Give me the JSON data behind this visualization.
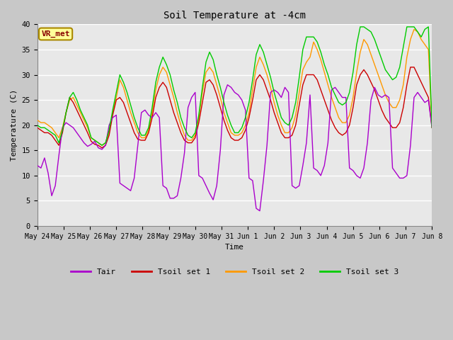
{
  "title": "Soil Temperature at -4cm",
  "xlabel": "Time",
  "ylabel": "Temperature (C)",
  "ylim": [
    0,
    40
  ],
  "figsize": [
    6.4,
    4.8
  ],
  "dpi": 100,
  "annotation_text": "VR_met",
  "annotation_bg": "#ffff99",
  "annotation_border": "#aa8800",
  "annotation_text_color": "#880000",
  "colors": {
    "Tair": "#aa00cc",
    "Tsoil1": "#cc0000",
    "Tsoil2": "#ff9900",
    "Tsoil3": "#00cc00"
  },
  "legend_labels": [
    "Tair",
    "Tsoil set 1",
    "Tsoil set 2",
    "Tsoil set 3"
  ],
  "xtick_labels": [
    "May 24",
    "May 25",
    "May 26",
    "May 27",
    "May 28",
    "May 29",
    "May 30",
    "May 31",
    "Jun 1",
    "Jun 2",
    "Jun 3",
    "Jun 4",
    "Jun 5",
    "Jun 6",
    "Jun 7",
    "Jun 8"
  ],
  "tair": [
    12.0,
    11.5,
    13.5,
    10.5,
    6.0,
    8.0,
    14.0,
    19.5,
    20.5,
    20.0,
    19.5,
    18.5,
    17.5,
    16.5,
    15.8,
    16.2,
    16.8,
    15.5,
    15.2,
    16.0,
    20.0,
    21.5,
    22.0,
    8.5,
    8.0,
    7.5,
    7.0,
    9.5,
    16.0,
    22.5,
    23.0,
    22.0,
    21.5,
    22.5,
    21.5,
    8.0,
    7.5,
    5.5,
    5.5,
    6.0,
    9.5,
    14.5,
    23.5,
    25.5,
    26.5,
    10.0,
    9.5,
    8.0,
    6.5,
    5.2,
    8.0,
    15.0,
    26.0,
    28.0,
    27.5,
    26.5,
    26.0,
    25.0,
    23.0,
    9.5,
    9.0,
    3.5,
    3.0,
    9.0,
    16.0,
    26.5,
    27.0,
    26.5,
    25.5,
    27.5,
    26.5,
    8.0,
    7.5,
    8.0,
    12.0,
    16.5,
    26.0,
    11.5,
    11.0,
    10.0,
    12.0,
    16.5,
    27.0,
    27.5,
    26.5,
    25.5,
    25.5,
    11.5,
    11.0,
    10.0,
    9.5,
    11.5,
    16.5,
    25.0,
    27.5,
    26.0,
    25.5,
    26.0,
    25.5,
    11.5,
    10.5,
    9.5,
    9.5,
    10.0,
    16.0,
    25.5,
    26.5,
    25.5,
    24.5,
    25.0,
    19.5
  ],
  "tsoil1": [
    19.5,
    19.0,
    18.5,
    18.5,
    18.0,
    17.0,
    16.0,
    18.5,
    22.5,
    25.5,
    24.5,
    23.0,
    21.5,
    20.0,
    18.5,
    16.8,
    16.2,
    16.0,
    15.5,
    16.0,
    18.0,
    22.0,
    25.0,
    25.5,
    24.5,
    22.5,
    20.5,
    18.5,
    17.2,
    17.0,
    17.0,
    18.5,
    21.5,
    25.5,
    27.5,
    28.5,
    27.5,
    25.0,
    22.5,
    20.5,
    18.5,
    17.0,
    16.5,
    16.5,
    17.5,
    20.5,
    24.5,
    28.5,
    29.0,
    28.0,
    26.0,
    23.5,
    21.0,
    19.0,
    17.5,
    17.0,
    17.0,
    17.5,
    19.0,
    21.5,
    25.0,
    29.0,
    30.0,
    29.0,
    27.0,
    25.0,
    22.5,
    20.5,
    18.5,
    17.5,
    17.5,
    18.0,
    20.0,
    24.0,
    28.0,
    30.0,
    30.0,
    30.0,
    29.0,
    27.0,
    25.0,
    23.0,
    21.0,
    19.5,
    18.5,
    18.0,
    18.5,
    20.0,
    23.5,
    28.0,
    30.0,
    31.0,
    30.0,
    28.5,
    27.0,
    25.0,
    23.0,
    21.5,
    20.5,
    19.5,
    19.5,
    20.5,
    23.5,
    28.0,
    31.5,
    31.5,
    30.0,
    28.5,
    27.0,
    25.5,
    19.5
  ],
  "tsoil2": [
    21.0,
    20.5,
    20.5,
    20.0,
    19.5,
    18.5,
    17.5,
    19.5,
    22.5,
    25.0,
    25.5,
    24.0,
    22.5,
    21.0,
    19.5,
    17.5,
    17.0,
    16.5,
    16.0,
    16.5,
    18.5,
    22.5,
    25.5,
    29.0,
    27.5,
    25.0,
    22.5,
    20.5,
    18.5,
    17.5,
    17.5,
    19.0,
    22.5,
    27.0,
    30.0,
    31.5,
    30.5,
    28.0,
    25.5,
    22.5,
    20.0,
    18.0,
    17.0,
    17.0,
    18.0,
    21.5,
    26.5,
    30.5,
    31.5,
    30.5,
    28.0,
    25.5,
    22.5,
    20.5,
    18.5,
    18.0,
    18.0,
    18.5,
    20.0,
    22.5,
    27.0,
    31.5,
    33.5,
    32.0,
    30.0,
    27.5,
    24.5,
    22.0,
    20.0,
    18.5,
    18.5,
    19.5,
    22.0,
    26.5,
    31.0,
    32.5,
    33.5,
    36.5,
    35.0,
    33.0,
    30.5,
    28.0,
    25.5,
    23.5,
    21.5,
    20.5,
    20.5,
    22.0,
    25.5,
    30.5,
    34.5,
    37.0,
    36.0,
    34.0,
    32.0,
    30.0,
    28.0,
    26.0,
    24.5,
    23.5,
    23.5,
    25.0,
    28.0,
    33.5,
    37.0,
    39.0,
    38.5,
    37.0,
    36.0,
    35.0,
    19.5
  ],
  "tsoil3": [
    20.0,
    19.5,
    19.5,
    19.0,
    18.5,
    18.0,
    16.5,
    19.0,
    22.5,
    25.5,
    26.5,
    25.0,
    23.0,
    21.5,
    20.0,
    17.5,
    17.0,
    16.5,
    16.0,
    16.5,
    19.0,
    23.0,
    26.5,
    30.0,
    28.5,
    26.5,
    24.0,
    21.5,
    19.5,
    18.0,
    18.0,
    19.5,
    23.5,
    28.5,
    31.5,
    33.5,
    32.0,
    30.0,
    27.0,
    24.5,
    21.5,
    19.5,
    18.0,
    17.5,
    18.5,
    22.0,
    27.5,
    32.5,
    34.5,
    33.0,
    30.0,
    27.5,
    24.5,
    22.0,
    20.0,
    18.5,
    18.5,
    19.5,
    21.5,
    24.5,
    29.0,
    34.0,
    36.0,
    34.5,
    32.0,
    29.5,
    26.5,
    24.0,
    21.5,
    20.5,
    20.0,
    21.5,
    24.5,
    29.5,
    35.0,
    37.5,
    37.5,
    37.5,
    36.5,
    34.5,
    32.0,
    30.0,
    27.5,
    26.0,
    24.5,
    24.0,
    24.5,
    26.5,
    30.5,
    36.0,
    39.5,
    39.5,
    39.0,
    38.5,
    37.0,
    35.0,
    33.0,
    31.0,
    30.0,
    29.0,
    29.5,
    31.5,
    35.5,
    39.5,
    39.5,
    39.5,
    38.5,
    37.5,
    39.0,
    39.5,
    19.5
  ]
}
